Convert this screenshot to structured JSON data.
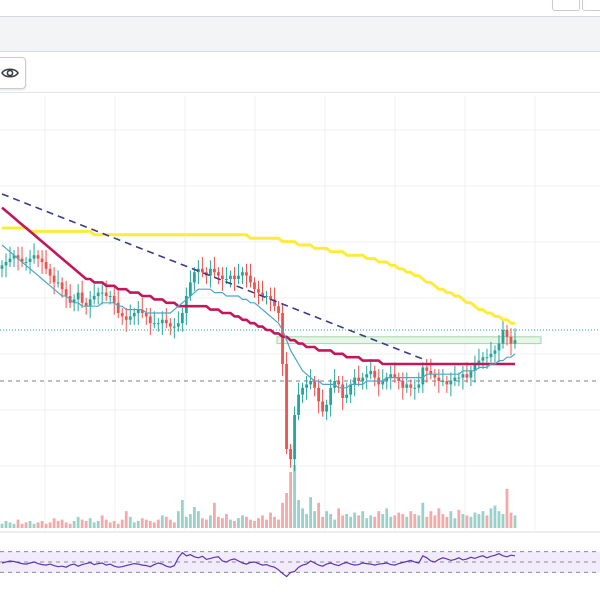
{
  "window": {
    "toolbar_buttons": [
      "window-button-1",
      "window-button-2"
    ]
  },
  "chart_data": [
    {
      "type": "candlestick",
      "title": "",
      "xlabel": "",
      "ylabel": "",
      "x_index": [
        0,
        1,
        2,
        3,
        4,
        5,
        6,
        7,
        8,
        9,
        10,
        11,
        12,
        13,
        14,
        15,
        16,
        17,
        18,
        19,
        20,
        21,
        22,
        23,
        24,
        25,
        26,
        27,
        28,
        29,
        30,
        31,
        32,
        33,
        34,
        35,
        36,
        37,
        38,
        39,
        40,
        41,
        42,
        43,
        44,
        45,
        46,
        47,
        48,
        49,
        50,
        51,
        52,
        53,
        54,
        55,
        56,
        57,
        58,
        59,
        60,
        61,
        62,
        63,
        64,
        65,
        66,
        67,
        68,
        69,
        70,
        71,
        72,
        73,
        74,
        75,
        76,
        77,
        78,
        79,
        80,
        81,
        82,
        83,
        84,
        85,
        86,
        87,
        88,
        89,
        90,
        91,
        92,
        93,
        94,
        95,
        96,
        97,
        98,
        99,
        100,
        101,
        102,
        103,
        104,
        105,
        106,
        107,
        108,
        109,
        110,
        111,
        112,
        113,
        114,
        115,
        116,
        117,
        118,
        119,
        120,
        121,
        122,
        123,
        124,
        125,
        126,
        127,
        128
      ],
      "price_scale": [
        0,
        100
      ],
      "close": [
        69,
        70,
        71,
        72,
        71,
        70,
        70,
        71,
        72,
        71,
        70,
        68,
        66,
        64,
        64,
        62,
        60,
        58,
        59,
        61,
        58,
        57,
        59,
        60,
        61,
        61,
        60,
        60,
        58,
        55,
        54,
        53,
        54,
        55,
        56,
        55,
        54,
        52,
        52,
        52,
        53,
        52,
        51,
        51,
        52,
        55,
        60,
        64,
        67,
        68,
        67,
        66,
        68,
        67,
        66,
        65,
        65,
        66,
        65,
        66,
        67,
        66,
        64,
        62,
        61,
        60,
        60,
        59,
        57,
        55,
        40,
        15,
        12,
        25,
        31,
        33,
        34,
        35,
        33,
        29,
        26,
        28,
        33,
        35,
        34,
        30,
        31,
        34,
        36,
        35,
        36,
        37,
        38,
        36,
        34,
        35,
        36,
        37,
        36,
        35,
        33,
        34,
        33,
        33,
        34,
        39,
        38,
        37,
        36,
        35,
        35,
        34,
        35,
        36,
        36,
        37,
        36,
        38,
        40,
        41,
        42,
        42,
        43,
        44,
        46,
        50,
        48,
        46,
        47
      ],
      "open": [
        68,
        69,
        70,
        71,
        72,
        71,
        70,
        70,
        71,
        72,
        71,
        70,
        68,
        66,
        64,
        64,
        62,
        60,
        58,
        59,
        61,
        58,
        57,
        59,
        60,
        61,
        61,
        60,
        60,
        58,
        55,
        54,
        53,
        54,
        55,
        56,
        55,
        54,
        52,
        52,
        52,
        53,
        52,
        51,
        51,
        52,
        55,
        60,
        64,
        67,
        68,
        67,
        66,
        68,
        67,
        66,
        65,
        65,
        66,
        65,
        66,
        67,
        66,
        64,
        62,
        61,
        60,
        60,
        59,
        57,
        55,
        40,
        15,
        12,
        25,
        31,
        33,
        34,
        35,
        33,
        29,
        26,
        28,
        33,
        35,
        34,
        30,
        31,
        34,
        36,
        35,
        36,
        37,
        38,
        36,
        34,
        35,
        36,
        37,
        36,
        35,
        33,
        34,
        33,
        33,
        34,
        39,
        38,
        37,
        36,
        35,
        35,
        34,
        35,
        36,
        36,
        37,
        36,
        38,
        40,
        41,
        42,
        42,
        43,
        44,
        46,
        50,
        48,
        46
      ],
      "ema_fast": [
        75,
        74,
        73,
        72,
        71,
        70,
        69,
        68,
        67,
        66,
        65,
        64,
        63,
        62,
        61,
        60,
        60,
        59,
        58,
        58,
        57,
        57,
        57,
        57,
        57,
        58,
        58,
        58,
        58,
        57,
        57,
        56,
        56,
        56,
        56,
        56,
        55,
        55,
        55,
        55,
        55,
        55,
        55,
        56,
        57,
        58,
        59,
        60,
        61,
        62,
        62,
        62,
        62,
        61,
        61,
        61,
        60,
        60,
        60,
        60,
        59,
        59,
        58,
        58,
        57,
        56,
        55,
        54,
        53,
        52,
        50,
        47,
        44,
        42,
        40,
        38,
        37,
        36,
        35,
        35,
        34,
        34,
        34,
        34,
        33,
        33,
        33,
        34,
        34,
        34,
        34,
        35,
        35,
        35,
        35,
        35,
        36,
        36,
        36,
        36,
        36,
        36,
        36,
        36,
        36,
        36,
        37,
        37,
        37,
        37,
        37,
        37,
        37,
        37,
        37,
        38,
        38,
        38,
        38,
        39,
        39,
        39,
        40,
        40,
        41,
        41,
        42,
        42,
        43
      ],
      "ema_slow": [
        86,
        85,
        84,
        83,
        82,
        81,
        80,
        79,
        78,
        77,
        76,
        75,
        74,
        73,
        72,
        71,
        70,
        69,
        68,
        67,
        66,
        65,
        65,
        64,
        64,
        64,
        63,
        63,
        63,
        62,
        62,
        62,
        61,
        61,
        61,
        60,
        60,
        60,
        59,
        59,
        59,
        58,
        58,
        58,
        57,
        57,
        57,
        57,
        57,
        57,
        57,
        57,
        56,
        56,
        56,
        55,
        55,
        55,
        54,
        54,
        53,
        53,
        52,
        52,
        51,
        51,
        50,
        50,
        49,
        49,
        48,
        48,
        47,
        47,
        46,
        46,
        45,
        45,
        45,
        44,
        44,
        44,
        44,
        43,
        43,
        43,
        42,
        42,
        42,
        42,
        41,
        41,
        41,
        41,
        41,
        40,
        40,
        40,
        40,
        40,
        40,
        40,
        40,
        40,
        40,
        40,
        40,
        40,
        40,
        40,
        40,
        40,
        40,
        40,
        40,
        40,
        40,
        40,
        40,
        40,
        40,
        40,
        40,
        40,
        40,
        40,
        40,
        40,
        40
      ],
      "sma_long": [
        80,
        80,
        80,
        80,
        80,
        80,
        80,
        79,
        79,
        79,
        79,
        79,
        79,
        79,
        79,
        79,
        79,
        79,
        79,
        79,
        79,
        79,
        79,
        78,
        78,
        78,
        78,
        78,
        78,
        78,
        78,
        78,
        78,
        78,
        78,
        78,
        78,
        78,
        78,
        78,
        78,
        78,
        78,
        78,
        78,
        78,
        78,
        78,
        78,
        78,
        78,
        78,
        78,
        78,
        78,
        78,
        78,
        78,
        78,
        78,
        78,
        78,
        77,
        77,
        77,
        77,
        77,
        77,
        77,
        77,
        76,
        76,
        76,
        76,
        75,
        75,
        75,
        75,
        74,
        74,
        74,
        74,
        73,
        73,
        73,
        73,
        72,
        72,
        72,
        72,
        72,
        71,
        71,
        71,
        70,
        70,
        70,
        69,
        69,
        68,
        68,
        67,
        67,
        66,
        66,
        65,
        64,
        64,
        63,
        62,
        62,
        61,
        61,
        60,
        60,
        59,
        58,
        58,
        57,
        56,
        56,
        55,
        55,
        54,
        54,
        53,
        53,
        52,
        52
      ],
      "trendline": [
        {
          "x": 0,
          "y": 90
        },
        {
          "x": 106,
          "y": 41
        }
      ],
      "horizontal_levels": [
        {
          "name": "support-zone",
          "y_low": 46,
          "y_high": 48
        },
        {
          "name": "current-price-line",
          "y": 50
        },
        {
          "name": "dashed-level",
          "y": 35
        }
      ],
      "colors": {
        "up": "#26a69a",
        "down": "#ef5350",
        "ema_fast": "#4aa7c7",
        "ema_slow": "#c2185b",
        "sma_long": "#ffeb3b",
        "trendline": "#3d3b8a",
        "zone": "#a5d6a7",
        "rsi": "#5e35b1"
      },
      "grid": true,
      "legend": "none"
    },
    {
      "type": "bar",
      "title": "",
      "xlabel": "",
      "ylabel": "",
      "values": [
        3,
        5,
        4,
        3,
        6,
        3,
        4,
        5,
        3,
        4,
        5,
        3,
        4,
        7,
        5,
        6,
        4,
        3,
        5,
        8,
        6,
        5,
        7,
        4,
        5,
        9,
        6,
        4,
        5,
        3,
        6,
        12,
        8,
        4,
        5,
        7,
        6,
        5,
        4,
        6,
        9,
        8,
        6,
        4,
        12,
        20,
        8,
        10,
        15,
        12,
        7,
        6,
        9,
        18,
        8,
        7,
        10,
        6,
        5,
        7,
        9,
        8,
        6,
        5,
        7,
        9,
        6,
        11,
        8,
        6,
        18,
        25,
        40,
        45,
        20,
        14,
        10,
        22,
        12,
        18,
        8,
        12,
        10,
        6,
        14,
        9,
        10,
        8,
        11,
        9,
        12,
        7,
        9,
        8,
        12,
        10,
        14,
        8,
        9,
        11,
        10,
        8,
        12,
        10,
        9,
        18,
        8,
        12,
        9,
        14,
        10,
        8,
        12,
        7,
        13,
        10,
        9,
        8,
        11,
        10,
        12,
        9,
        14,
        16,
        12,
        10,
        28,
        11,
        9
      ],
      "up": [
        true,
        true,
        true,
        true,
        false,
        false,
        false,
        true,
        true,
        false,
        false,
        false,
        false,
        false,
        false,
        false,
        false,
        false,
        true,
        true,
        false,
        false,
        true,
        true,
        true,
        false,
        false,
        false,
        false,
        false,
        false,
        false,
        true,
        true,
        true,
        false,
        false,
        false,
        false,
        false,
        true,
        false,
        false,
        false,
        true,
        true,
        true,
        true,
        true,
        true,
        false,
        false,
        true,
        false,
        false,
        false,
        false,
        true,
        false,
        true,
        true,
        false,
        false,
        false,
        false,
        false,
        false,
        false,
        false,
        false,
        false,
        false,
        false,
        true,
        true,
        true,
        true,
        true,
        true,
        false,
        false,
        true,
        true,
        true,
        false,
        false,
        true,
        true,
        true,
        false,
        true,
        true,
        true,
        false,
        false,
        true,
        true,
        true,
        false,
        false,
        false,
        true,
        false,
        false,
        true,
        true,
        false,
        false,
        false,
        false,
        false,
        false,
        true,
        true,
        false,
        true,
        false,
        true,
        true,
        true,
        true,
        false,
        true,
        true,
        true,
        true,
        false,
        false,
        true
      ],
      "ylim": [
        0,
        50
      ]
    },
    {
      "type": "line",
      "title": "",
      "xlabel": "",
      "ylabel": "",
      "values": [
        48,
        50,
        52,
        51,
        49,
        47,
        46,
        48,
        50,
        47,
        45,
        44,
        46,
        43,
        41,
        42,
        40,
        44,
        46,
        42,
        45,
        47,
        49,
        45,
        47,
        48,
        44,
        46,
        42,
        40,
        41,
        43,
        45,
        47,
        46,
        44,
        43,
        41,
        45,
        48,
        46,
        42,
        40,
        43,
        58,
        68,
        62,
        64,
        60,
        58,
        61,
        55,
        57,
        59,
        60,
        52,
        50,
        54,
        56,
        52,
        48,
        46,
        49,
        50,
        47,
        44,
        45,
        42,
        40,
        35,
        28,
        22,
        30,
        32,
        40,
        44,
        46,
        52,
        48,
        44,
        42,
        46,
        48,
        45,
        43,
        47,
        49,
        46,
        44,
        45,
        48,
        47,
        46,
        44,
        46,
        47,
        48,
        45,
        44,
        47,
        49,
        51,
        53,
        50,
        48,
        62,
        58,
        52,
        50,
        55,
        58,
        56,
        53,
        55,
        58,
        54,
        56,
        59,
        57,
        60,
        62,
        58,
        61,
        63,
        66,
        62,
        60,
        63,
        62
      ],
      "levels": [
        70,
        50,
        30
      ],
      "ylim": [
        0,
        100
      ]
    }
  ]
}
